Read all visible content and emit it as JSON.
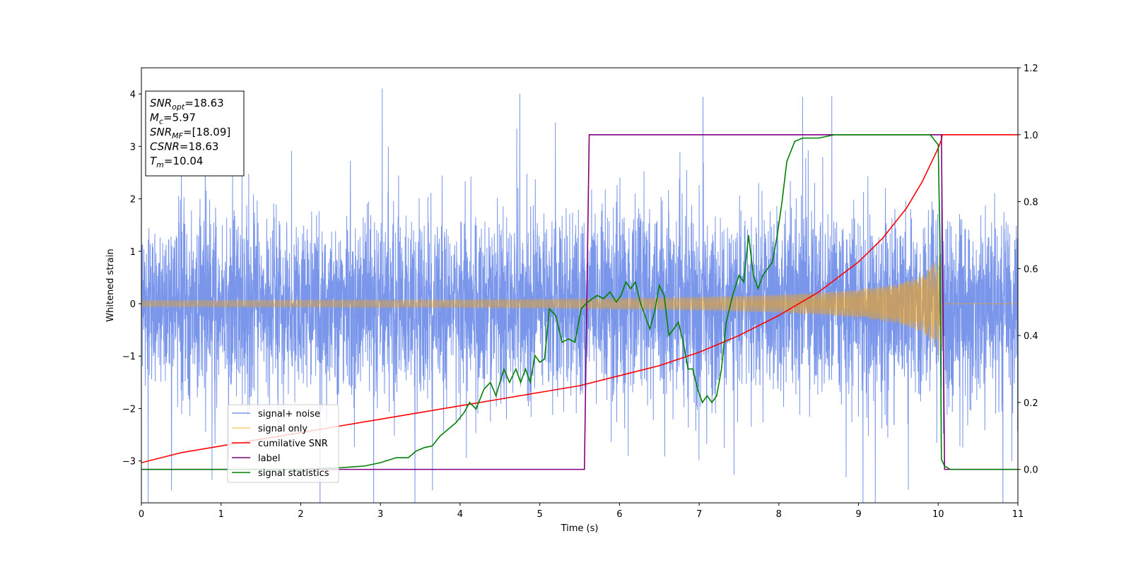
{
  "chart_data": {
    "type": "line",
    "xlabel": "Time (s)",
    "ylabel": "Whitened strain",
    "xlim": [
      0,
      11
    ],
    "ylim": [
      -3.8,
      4.5
    ],
    "y2lim": [
      -0.1,
      1.2
    ],
    "x_ticks": [
      0,
      1,
      2,
      3,
      4,
      5,
      6,
      7,
      8,
      9,
      10,
      11
    ],
    "x_tick_labels": [
      "0",
      "1",
      "2",
      "3",
      "4",
      "5",
      "6",
      "7",
      "8",
      "9",
      "10",
      "11"
    ],
    "y_ticks": [
      -3,
      -2,
      -1,
      0,
      1,
      2,
      3,
      4
    ],
    "y_tick_labels": [
      "−3",
      "−2",
      "−1",
      "0",
      "1",
      "2",
      "3",
      "4"
    ],
    "y2_ticks": [
      0.0,
      0.2,
      0.4,
      0.6,
      0.8,
      1.0,
      1.2
    ],
    "y2_tick_labels": [
      "0.0",
      "0.2",
      "0.4",
      "0.6",
      "0.8",
      "1.0",
      "1.2"
    ],
    "grid": false,
    "legend_position": "lower-left",
    "info_box": {
      "position": "top-left",
      "lines": [
        {
          "label": "SNR",
          "sub": "opt",
          "value": "=18.63"
        },
        {
          "label": "M",
          "sub": "c",
          "value": "=5.97"
        },
        {
          "label": "SNR",
          "sub": "MF",
          "value": "=[18.09]"
        },
        {
          "label": "CSNR",
          "sub": "",
          "value": "=18.63"
        },
        {
          "label": "T",
          "sub": "m",
          "value": "=10.04"
        }
      ]
    },
    "series": [
      {
        "name": "signal+ noise",
        "color": "#4169e1",
        "axis": "left",
        "style": "noise",
        "noise_std": 1.0,
        "x_range": [
          0,
          11
        ]
      },
      {
        "name": "signal only",
        "color": "#ffa500",
        "axis": "left",
        "style": "chirp-envelope",
        "envelope": {
          "x": [
            0,
            2,
            4,
            5,
            6,
            7,
            8,
            8.5,
            9,
            9.5,
            9.8,
            9.95,
            10.0,
            10.04,
            10.05,
            11
          ],
          "amp": [
            0.06,
            0.07,
            0.08,
            0.09,
            0.11,
            0.13,
            0.17,
            0.21,
            0.27,
            0.38,
            0.55,
            0.8,
            1.0,
            1.0,
            0.0,
            0.0
          ]
        }
      },
      {
        "name": "cumilative SNR",
        "color": "#ff0000",
        "axis": "right",
        "x": [
          0,
          0.5,
          1,
          1.5,
          2,
          2.5,
          3,
          3.5,
          4,
          4.5,
          5,
          5.5,
          6,
          6.5,
          7,
          7.5,
          8,
          8.5,
          9,
          9.3,
          9.6,
          9.8,
          9.9,
          10.0,
          10.04,
          10.05,
          11
        ],
        "y": [
          0.02,
          0.05,
          0.07,
          0.09,
          0.11,
          0.13,
          0.15,
          0.17,
          0.19,
          0.21,
          0.23,
          0.25,
          0.28,
          0.31,
          0.35,
          0.4,
          0.46,
          0.53,
          0.62,
          0.69,
          0.78,
          0.86,
          0.91,
          0.96,
          0.985,
          1.0,
          1.0
        ]
      },
      {
        "name": "label",
        "color": "#800080",
        "axis": "right",
        "x": [
          0,
          5.56,
          5.62,
          10.04,
          10.08,
          11
        ],
        "y": [
          0,
          0,
          1,
          1,
          0,
          0
        ]
      },
      {
        "name": "signal statistics",
        "color": "#008000",
        "axis": "right",
        "x": [
          0,
          1,
          2,
          2.5,
          2.8,
          3.0,
          3.2,
          3.35,
          3.45,
          3.55,
          3.65,
          3.75,
          3.85,
          3.95,
          4.05,
          4.12,
          4.2,
          4.3,
          4.38,
          4.45,
          4.55,
          4.62,
          4.7,
          4.76,
          4.82,
          4.88,
          4.94,
          5.0,
          5.06,
          5.12,
          5.2,
          5.28,
          5.36,
          5.44,
          5.52,
          5.6,
          5.66,
          5.72,
          5.8,
          5.88,
          5.96,
          6.02,
          6.08,
          6.14,
          6.2,
          6.26,
          6.32,
          6.38,
          6.44,
          6.5,
          6.56,
          6.62,
          6.68,
          6.74,
          6.8,
          6.86,
          6.92,
          6.98,
          7.04,
          7.1,
          7.16,
          7.22,
          7.28,
          7.34,
          7.42,
          7.5,
          7.56,
          7.62,
          7.68,
          7.74,
          7.8,
          7.86,
          7.92,
          7.98,
          8.04,
          8.1,
          8.2,
          8.3,
          8.5,
          8.7,
          9.0,
          9.5,
          9.9,
          10.0,
          10.02,
          10.04,
          10.08,
          10.15,
          10.3,
          11
        ],
        "y": [
          0.0,
          0.0,
          0.0,
          0.005,
          0.01,
          0.02,
          0.035,
          0.035,
          0.055,
          0.065,
          0.07,
          0.1,
          0.12,
          0.14,
          0.17,
          0.2,
          0.18,
          0.24,
          0.26,
          0.22,
          0.3,
          0.26,
          0.3,
          0.26,
          0.3,
          0.26,
          0.34,
          0.32,
          0.33,
          0.48,
          0.46,
          0.38,
          0.39,
          0.38,
          0.48,
          0.5,
          0.51,
          0.52,
          0.51,
          0.53,
          0.5,
          0.52,
          0.56,
          0.54,
          0.56,
          0.5,
          0.46,
          0.42,
          0.47,
          0.55,
          0.52,
          0.4,
          0.42,
          0.44,
          0.38,
          0.3,
          0.3,
          0.24,
          0.2,
          0.22,
          0.2,
          0.22,
          0.3,
          0.44,
          0.52,
          0.58,
          0.56,
          0.7,
          0.58,
          0.54,
          0.58,
          0.6,
          0.62,
          0.7,
          0.8,
          0.92,
          0.98,
          0.99,
          0.99,
          1.0,
          1.0,
          1.0,
          1.0,
          0.97,
          0.7,
          0.03,
          0.01,
          0.0,
          0.0,
          0.0
        ]
      }
    ]
  }
}
